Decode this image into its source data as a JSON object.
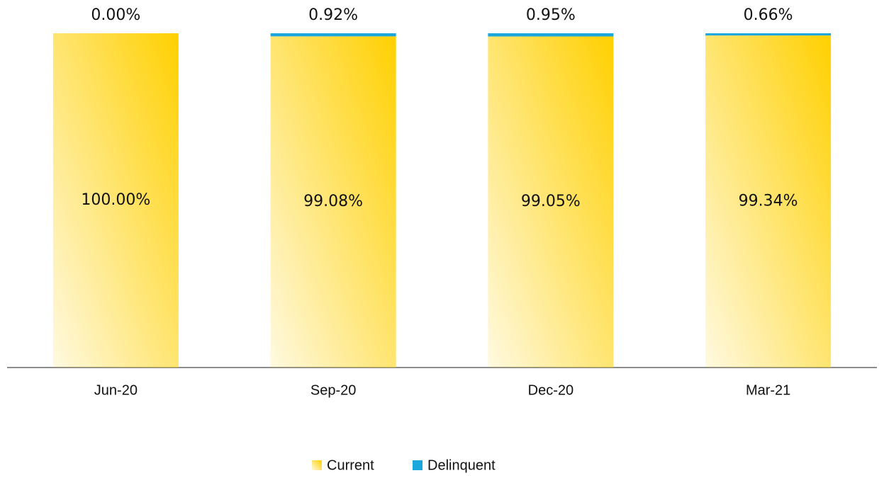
{
  "chart_data": {
    "type": "stacked_bar",
    "categories": [
      "Jun-20",
      "Sep-20",
      "Dec-20",
      "Mar-21"
    ],
    "series": [
      {
        "name": "Current",
        "color": "#ffd000",
        "values": [
          100,
          99.08,
          99.05,
          99.34
        ],
        "value_labels": [
          "100.00%",
          "99.08%",
          "99.05%",
          "99.34%"
        ]
      },
      {
        "name": "Delinquent",
        "color": "#1aa7dc",
        "values": [
          0,
          0.92,
          0.95,
          0.66
        ],
        "value_labels": [
          "0.00%",
          "0.92%",
          "0.95%",
          "0.66%"
        ]
      }
    ]
  }
}
